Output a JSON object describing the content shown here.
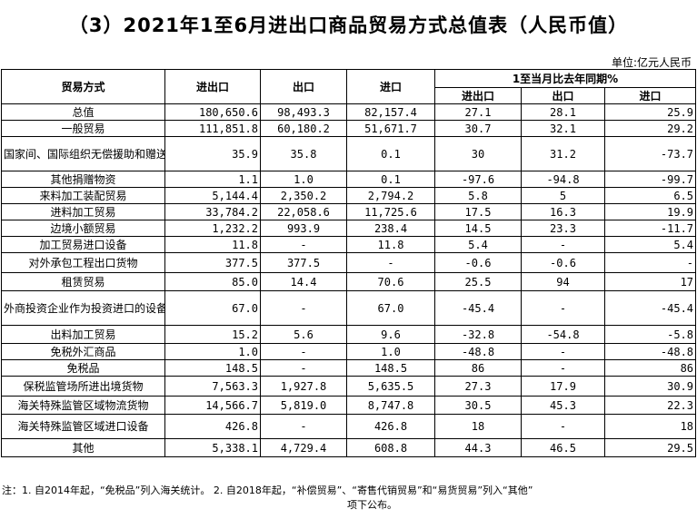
{
  "title": "（3）2021年1至6月进出口商品贸易方式总值表（人民币值）",
  "unit": "单位:亿元人民币",
  "headers": {
    "trade_mode": "贸易方式",
    "total": "进出口",
    "export": "出口",
    "import": "进口",
    "yoy_group": "1至当月比去年同期%",
    "yoy_total": "进出口",
    "yoy_export": "出口",
    "yoy_import": "进口"
  },
  "rows": [
    {
      "label": "总值",
      "total": "180,650.6",
      "export": "98,493.3",
      "import": "82,157.4",
      "yt": "27.1",
      "ye": "28.1",
      "yi": "25.9"
    },
    {
      "label": "一般贸易",
      "total": "111,851.8",
      "export": "60,180.2",
      "import": "51,671.7",
      "yt": "30.7",
      "ye": "32.1",
      "yi": "29.2"
    },
    {
      "label": "国家间、国际组织无偿援助和赠送的物资",
      "total": "35.9",
      "export": "35.8",
      "import": "0.1",
      "yt": "30",
      "ye": "31.2",
      "yi": "-73.7"
    },
    {
      "label": "其他捐赠物资",
      "total": "1.1",
      "export": "1.0",
      "import": "0.1",
      "yt": "-97.6",
      "ye": "-94.8",
      "yi": "-99.7"
    },
    {
      "label": "来料加工装配贸易",
      "total": "5,144.4",
      "export": "2,350.2",
      "import": "2,794.2",
      "yt": "5.8",
      "ye": "5",
      "yi": "6.5"
    },
    {
      "label": "进料加工贸易",
      "total": "33,784.2",
      "export": "22,058.6",
      "import": "11,725.6",
      "yt": "17.5",
      "ye": "16.3",
      "yi": "19.9"
    },
    {
      "label": "边境小额贸易",
      "total": "1,232.2",
      "export": "993.9",
      "import": "238.4",
      "yt": "14.5",
      "ye": "23.3",
      "yi": "-11.7"
    },
    {
      "label": "加工贸易进口设备",
      "total": "11.8",
      "export": "-",
      "import": "11.8",
      "yt": "5.4",
      "ye": "-",
      "yi": "5.4"
    },
    {
      "label": "对外承包工程出口货物",
      "total": "377.5",
      "export": "377.5",
      "import": "-",
      "yt": "-0.6",
      "ye": "-0.6",
      "yi": "-"
    },
    {
      "label": "租赁贸易",
      "total": "85.0",
      "export": "14.4",
      "import": "70.6",
      "yt": "25.5",
      "ye": "94",
      "yi": "17"
    },
    {
      "label": "外商投资企业作为投资进口的设备、物品",
      "total": "67.0",
      "export": "-",
      "import": "67.0",
      "yt": "-45.4",
      "ye": "-",
      "yi": "-45.4"
    },
    {
      "label": "出料加工贸易",
      "total": "15.2",
      "export": "5.6",
      "import": "9.6",
      "yt": "-32.8",
      "ye": "-54.8",
      "yi": "-5.8"
    },
    {
      "label": "免税外汇商品",
      "total": "1.0",
      "export": "-",
      "import": "1.0",
      "yt": "-48.8",
      "ye": "-",
      "yi": "-48.8"
    },
    {
      "label": "免税品",
      "total": "148.5",
      "export": "-",
      "import": "148.5",
      "yt": "86",
      "ye": "-",
      "yi": "86"
    },
    {
      "label": "保税监管场所进出境货物",
      "total": "7,563.3",
      "export": "1,927.8",
      "import": "5,635.5",
      "yt": "27.3",
      "ye": "17.9",
      "yi": "30.9"
    },
    {
      "label": "海关特殊监管区域物流货物",
      "total": "14,566.7",
      "export": "5,819.0",
      "import": "8,747.8",
      "yt": "30.5",
      "ye": "45.3",
      "yi": "22.3"
    },
    {
      "label": "海关特殊监管区域进口设备",
      "total": "426.8",
      "export": "-",
      "import": "426.8",
      "yt": "18",
      "ye": "-",
      "yi": "18"
    },
    {
      "label": "其他",
      "total": "5,338.1",
      "export": "4,729.4",
      "import": "608.8",
      "yt": "44.3",
      "ye": "46.5",
      "yi": "29.5"
    }
  ],
  "note": {
    "line1": "注：1. 自2014年起，“免税品”列入海关统计。 2. 自2018年起，“补偿贸易”、“寄售代销贸易”和“易货贸易”列入“其他”",
    "line2": "项下公布。"
  }
}
